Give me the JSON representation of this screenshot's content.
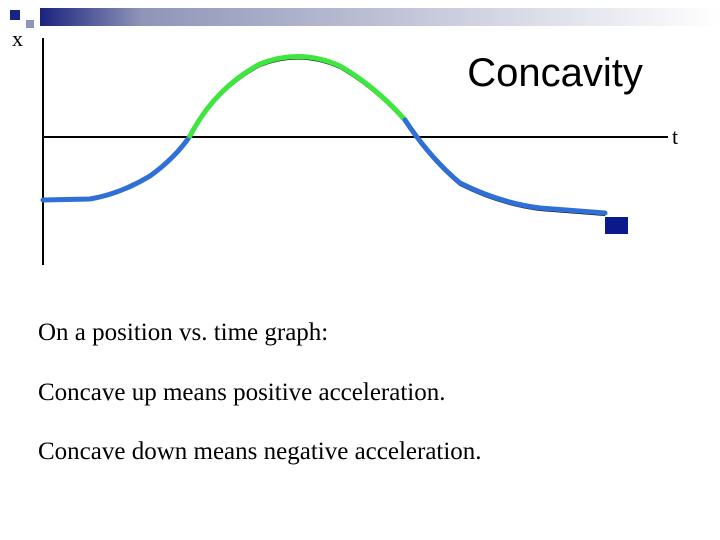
{
  "header": {
    "title": "Concavity"
  },
  "axes": {
    "x_label": "x",
    "t_label": "t"
  },
  "body": {
    "lines": [
      "On a position vs. time graph:",
      "Concave up means positive acceleration.",
      "Concave down means negative acceleration."
    ]
  }
}
